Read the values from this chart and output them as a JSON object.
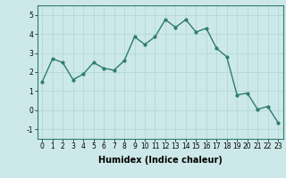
{
  "title": "",
  "xlabel": "Humidex (Indice chaleur)",
  "ylabel": "",
  "x": [
    0,
    1,
    2,
    3,
    4,
    5,
    6,
    7,
    8,
    9,
    10,
    11,
    12,
    13,
    14,
    15,
    16,
    17,
    18,
    19,
    20,
    21,
    22,
    23
  ],
  "y": [
    1.5,
    2.7,
    2.5,
    1.6,
    1.9,
    2.5,
    2.2,
    2.1,
    2.6,
    3.85,
    3.45,
    3.85,
    4.75,
    4.35,
    4.75,
    4.1,
    4.3,
    3.25,
    2.8,
    0.8,
    0.9,
    0.05,
    0.2,
    -0.65
  ],
  "line_color": "#2d7d6e",
  "marker": "o",
  "marker_size": 2.0,
  "line_width": 1.0,
  "bg_color": "#cde8e8",
  "grid_color": "#add4d4",
  "xlim": [
    -0.5,
    23.5
  ],
  "ylim": [
    -1.5,
    5.5
  ],
  "yticks": [
    -1,
    0,
    1,
    2,
    3,
    4,
    5
  ],
  "xticks": [
    0,
    1,
    2,
    3,
    4,
    5,
    6,
    7,
    8,
    9,
    10,
    11,
    12,
    13,
    14,
    15,
    16,
    17,
    18,
    19,
    20,
    21,
    22,
    23
  ],
  "tick_fontsize": 5.5,
  "xlabel_fontsize": 7.0,
  "xlabel_fontweight": "bold"
}
